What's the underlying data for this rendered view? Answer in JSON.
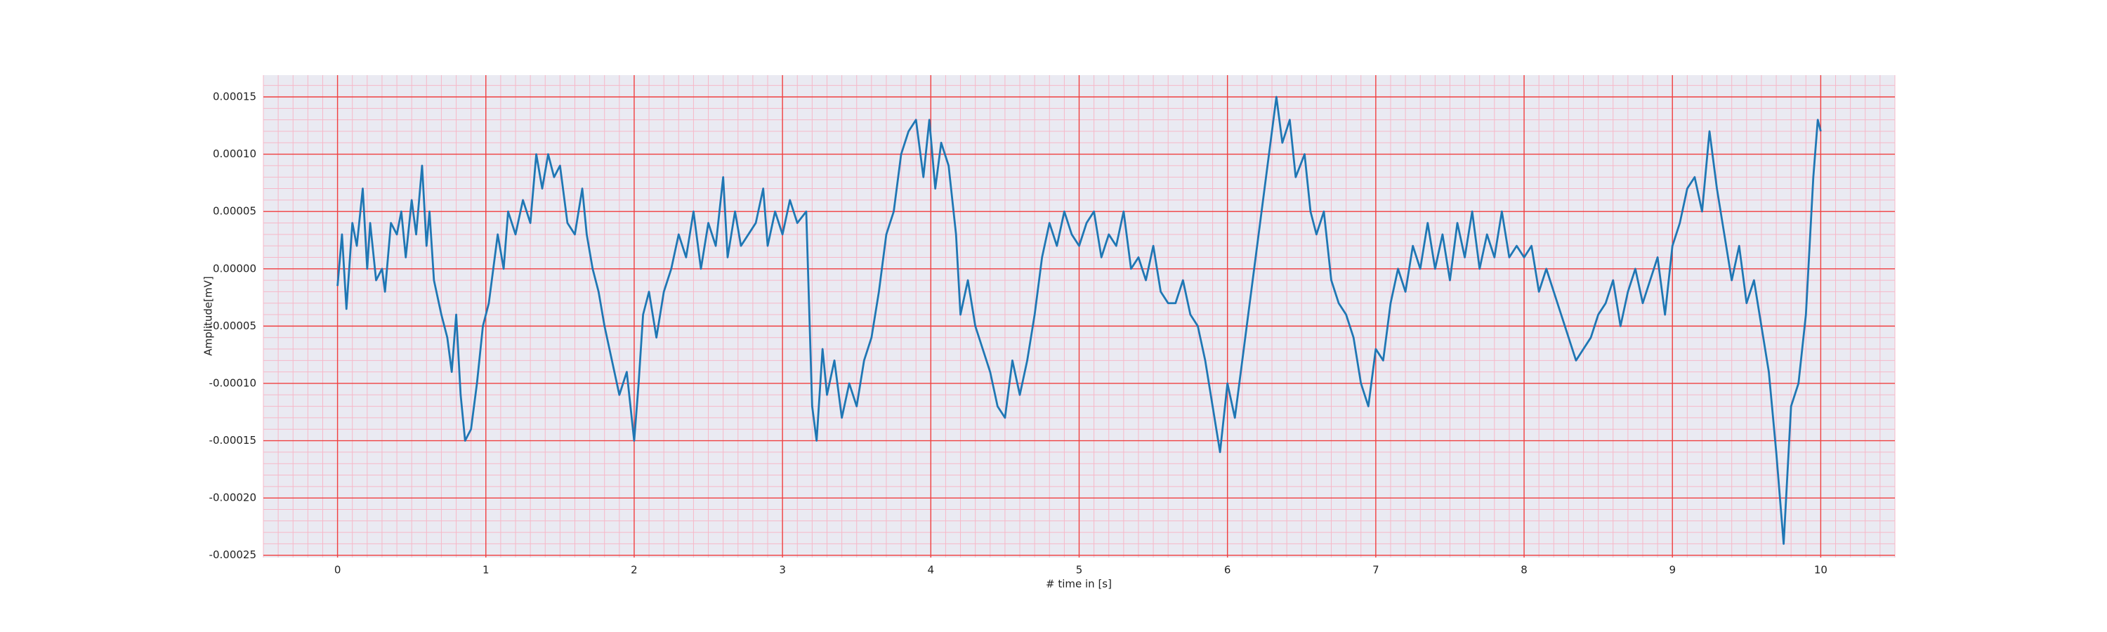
{
  "chart_data": {
    "type": "line",
    "xlabel": "# time in [s]",
    "ylabel": "Amplitude[mV]",
    "xlim": [
      -0.5,
      10.5
    ],
    "ylim": [
      -0.000252,
      0.000169
    ],
    "xticks": [
      0,
      1,
      2,
      3,
      4,
      5,
      6,
      7,
      8,
      9,
      10
    ],
    "yticks": [
      -0.00025,
      {
        "value": -0.0002,
        "label": "-0.00020"
      },
      -0.00015,
      {
        "value": -0.0001,
        "label": "-0.00010"
      },
      -5e-05,
      {
        "value": 0,
        "label": "0.00000"
      },
      5e-05,
      {
        "value": 0.0001,
        "label": "0.00010"
      },
      0.00015
    ],
    "grid": true,
    "minor_grid": true,
    "series": [
      {
        "color": "#1f77b4",
        "x": [
          0,
          0.03,
          0.06,
          0.1,
          0.13,
          0.17,
          0.2,
          0.22,
          0.26,
          0.3,
          0.32,
          0.36,
          0.4,
          0.43,
          0.46,
          0.5,
          0.53,
          0.57,
          0.6,
          0.62,
          0.65,
          0.7,
          0.74,
          0.77,
          0.8,
          0.83,
          0.86,
          0.9,
          0.94,
          0.98,
          1.02,
          1.08,
          1.12,
          1.15,
          1.2,
          1.25,
          1.3,
          1.34,
          1.38,
          1.42,
          1.46,
          1.5,
          1.55,
          1.6,
          1.65,
          1.68,
          1.72,
          1.76,
          1.8,
          1.85,
          1.9,
          1.95,
          2.0,
          2.03,
          2.06,
          2.1,
          2.15,
          2.2,
          2.25,
          2.3,
          2.35,
          2.4,
          2.45,
          2.5,
          2.55,
          2.6,
          2.63,
          2.68,
          2.72,
          2.77,
          2.82,
          2.87,
          2.9,
          2.95,
          3.0,
          3.05,
          3.1,
          3.16,
          3.2,
          3.23,
          3.27,
          3.3,
          3.35,
          3.4,
          3.45,
          3.5,
          3.55,
          3.6,
          3.65,
          3.7,
          3.75,
          3.8,
          3.85,
          3.9,
          3.95,
          3.99,
          4.03,
          4.07,
          4.12,
          4.17,
          4.2,
          4.25,
          4.3,
          4.35,
          4.4,
          4.45,
          4.5,
          4.55,
          4.6,
          4.65,
          4.7,
          4.75,
          4.8,
          4.85,
          4.9,
          4.95,
          5.0,
          5.05,
          5.1,
          5.15,
          5.2,
          5.25,
          5.3,
          5.35,
          5.4,
          5.45,
          5.5,
          5.55,
          5.6,
          5.65,
          5.7,
          5.75,
          5.8,
          5.85,
          5.9,
          5.95,
          6.0,
          6.05,
          6.1,
          6.15,
          6.2,
          6.25,
          6.3,
          6.33,
          6.37,
          6.42,
          6.46,
          6.52,
          6.56,
          6.6,
          6.65,
          6.7,
          6.75,
          6.8,
          6.85,
          6.9,
          6.95,
          7.0,
          7.05,
          7.1,
          7.15,
          7.2,
          7.25,
          7.3,
          7.35,
          7.4,
          7.45,
          7.5,
          7.55,
          7.6,
          7.65,
          7.7,
          7.75,
          7.8,
          7.85,
          7.9,
          7.95,
          8.0,
          8.05,
          8.1,
          8.15,
          8.2,
          8.25,
          8.3,
          8.35,
          8.4,
          8.45,
          8.5,
          8.55,
          8.6,
          8.65,
          8.7,
          8.75,
          8.8,
          8.85,
          8.9,
          8.95,
          9.0,
          9.05,
          9.1,
          9.15,
          9.2,
          9.25,
          9.3,
          9.35,
          9.4,
          9.45,
          9.5,
          9.55,
          9.6,
          9.65,
          9.7,
          9.75,
          9.8,
          9.85,
          9.9,
          9.95,
          9.98,
          10.0
        ],
        "values": [
          -1.5e-05,
          3e-05,
          -3.5e-05,
          4e-05,
          2e-05,
          7e-05,
          0,
          4e-05,
          -1e-05,
          0,
          -2e-05,
          4e-05,
          3e-05,
          5e-05,
          1e-05,
          6e-05,
          3e-05,
          9e-05,
          2e-05,
          5e-05,
          -1e-05,
          -4e-05,
          -6e-05,
          -9e-05,
          -4e-05,
          -0.00011,
          -0.00015,
          -0.00014,
          -0.0001,
          -5e-05,
          -3e-05,
          3e-05,
          0,
          5e-05,
          3e-05,
          6e-05,
          4e-05,
          0.0001,
          7e-05,
          0.0001,
          8e-05,
          9e-05,
          4e-05,
          3e-05,
          7e-05,
          3e-05,
          0,
          -2e-05,
          -5e-05,
          -8e-05,
          -0.00011,
          -9e-05,
          -0.00015,
          -0.0001,
          -4e-05,
          -2e-05,
          -6e-05,
          -2e-05,
          0,
          3e-05,
          1e-05,
          5e-05,
          0,
          4e-05,
          2e-05,
          8e-05,
          1e-05,
          5e-05,
          2e-05,
          3e-05,
          4e-05,
          7e-05,
          2e-05,
          5e-05,
          3e-05,
          6e-05,
          4e-05,
          5e-05,
          -0.00012,
          -0.00015,
          -7e-05,
          -0.00011,
          -8e-05,
          -0.00013,
          -0.0001,
          -0.00012,
          -8e-05,
          -6e-05,
          -2e-05,
          3e-05,
          5e-05,
          0.0001,
          0.00012,
          0.00013,
          8e-05,
          0.00013,
          7e-05,
          0.00011,
          9e-05,
          3e-05,
          -4e-05,
          -1e-05,
          -5e-05,
          -7e-05,
          -9e-05,
          -0.00012,
          -0.00013,
          -8e-05,
          -0.00011,
          -8e-05,
          -4e-05,
          1e-05,
          4e-05,
          2e-05,
          5e-05,
          3e-05,
          2e-05,
          4e-05,
          5e-05,
          1e-05,
          3e-05,
          2e-05,
          5e-05,
          0,
          1e-05,
          -1e-05,
          2e-05,
          -2e-05,
          -3e-05,
          -3e-05,
          -1e-05,
          -4e-05,
          -5e-05,
          -8e-05,
          -0.00012,
          -0.00016,
          -0.0001,
          -0.00013,
          -8e-05,
          -3e-05,
          2e-05,
          7e-05,
          0.00012,
          0.00015,
          0.00011,
          0.00013,
          8e-05,
          0.0001,
          5e-05,
          3e-05,
          5e-05,
          -1e-05,
          -3e-05,
          -4e-05,
          -6e-05,
          -0.0001,
          -0.00012,
          -7e-05,
          -8e-05,
          -3e-05,
          0,
          -2e-05,
          2e-05,
          0,
          4e-05,
          0,
          3e-05,
          -1e-05,
          4e-05,
          1e-05,
          5e-05,
          0,
          3e-05,
          1e-05,
          5e-05,
          1e-05,
          2e-05,
          1e-05,
          2e-05,
          -2e-05,
          0,
          -2e-05,
          -4e-05,
          -6e-05,
          -8e-05,
          -7e-05,
          -6e-05,
          -4e-05,
          -3e-05,
          -1e-05,
          -5e-05,
          -2e-05,
          0,
          -3e-05,
          -1e-05,
          1e-05,
          -4e-05,
          2e-05,
          4e-05,
          7e-05,
          8e-05,
          5e-05,
          0.00012,
          7e-05,
          3e-05,
          -1e-05,
          2e-05,
          -3e-05,
          -1e-05,
          -5e-05,
          -9e-05,
          -0.00016,
          -0.00024,
          -0.00012,
          -0.0001,
          -4e-05,
          8e-05,
          0.00013,
          0.00012
        ]
      }
    ]
  }
}
